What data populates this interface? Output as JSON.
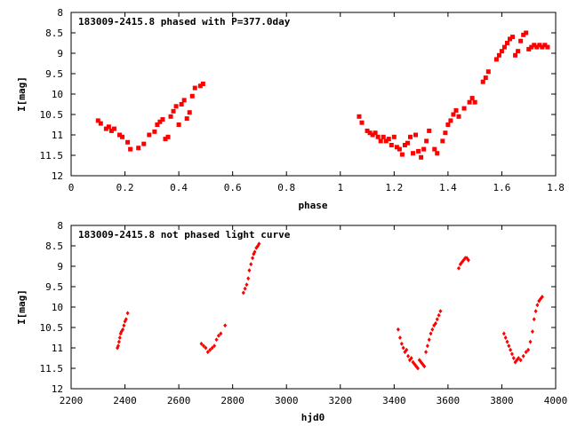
{
  "chart_data": [
    {
      "type": "scatter",
      "title": "183009-2415.8 phased with P=377.0day",
      "xlabel": "phase",
      "ylabel": "I[mag]",
      "xlim": [
        0,
        1.8
      ],
      "ylim": [
        8,
        12
      ],
      "y_inverted": true,
      "grid": false,
      "legend": "none",
      "marker": "filled square",
      "xticks": [
        "0",
        "0.2",
        "0.4",
        "0.6",
        "0.8",
        "1",
        "1.2",
        "1.4",
        "1.6",
        "1.8"
      ],
      "yticks": [
        "8",
        "8.5",
        "9",
        "9.5",
        "10",
        "10.5",
        "11",
        "11.5",
        "12"
      ],
      "series": [
        {
          "color": "#ff0000",
          "points": [
            [
              0.1,
              10.65
            ],
            [
              0.11,
              10.72
            ],
            [
              0.13,
              10.85
            ],
            [
              0.14,
              10.8
            ],
            [
              0.15,
              10.9
            ],
            [
              0.16,
              10.85
            ],
            [
              0.18,
              11.0
            ],
            [
              0.19,
              11.05
            ],
            [
              0.21,
              11.18
            ],
            [
              0.22,
              11.35
            ],
            [
              0.25,
              11.32
            ],
            [
              0.27,
              11.22
            ],
            [
              0.29,
              11.0
            ],
            [
              0.31,
              10.92
            ],
            [
              0.32,
              10.75
            ],
            [
              0.33,
              10.68
            ],
            [
              0.34,
              10.62
            ],
            [
              0.35,
              11.1
            ],
            [
              0.36,
              11.05
            ],
            [
              0.37,
              10.55
            ],
            [
              0.38,
              10.42
            ],
            [
              0.39,
              10.3
            ],
            [
              0.4,
              10.75
            ],
            [
              0.41,
              10.25
            ],
            [
              0.42,
              10.15
            ],
            [
              0.43,
              10.6
            ],
            [
              0.44,
              10.45
            ],
            [
              0.45,
              10.05
            ],
            [
              0.46,
              9.85
            ],
            [
              0.48,
              9.8
            ],
            [
              0.49,
              9.75
            ],
            [
              1.07,
              10.55
            ],
            [
              1.08,
              10.7
            ],
            [
              1.1,
              10.9
            ],
            [
              1.11,
              10.95
            ],
            [
              1.12,
              11.0
            ],
            [
              1.13,
              10.95
            ],
            [
              1.14,
              11.05
            ],
            [
              1.15,
              11.15
            ],
            [
              1.16,
              11.05
            ],
            [
              1.17,
              11.15
            ],
            [
              1.18,
              11.1
            ],
            [
              1.19,
              11.25
            ],
            [
              1.2,
              11.05
            ],
            [
              1.21,
              11.3
            ],
            [
              1.22,
              11.35
            ],
            [
              1.23,
              11.48
            ],
            [
              1.24,
              11.25
            ],
            [
              1.25,
              11.2
            ],
            [
              1.26,
              11.05
            ],
            [
              1.27,
              11.45
            ],
            [
              1.28,
              11.0
            ],
            [
              1.29,
              11.4
            ],
            [
              1.3,
              11.55
            ],
            [
              1.31,
              11.35
            ],
            [
              1.32,
              11.15
            ],
            [
              1.33,
              10.9
            ],
            [
              1.35,
              11.35
            ],
            [
              1.36,
              11.45
            ],
            [
              1.38,
              11.15
            ],
            [
              1.39,
              10.95
            ],
            [
              1.4,
              10.75
            ],
            [
              1.41,
              10.65
            ],
            [
              1.42,
              10.5
            ],
            [
              1.43,
              10.4
            ],
            [
              1.44,
              10.55
            ],
            [
              1.46,
              10.35
            ],
            [
              1.48,
              10.2
            ],
            [
              1.49,
              10.1
            ],
            [
              1.5,
              10.2
            ],
            [
              1.53,
              9.7
            ],
            [
              1.54,
              9.6
            ],
            [
              1.55,
              9.45
            ],
            [
              1.58,
              9.15
            ],
            [
              1.59,
              9.05
            ],
            [
              1.6,
              8.95
            ],
            [
              1.61,
              8.85
            ],
            [
              1.62,
              8.75
            ],
            [
              1.63,
              8.65
            ],
            [
              1.64,
              8.6
            ],
            [
              1.65,
              9.05
            ],
            [
              1.66,
              8.95
            ],
            [
              1.67,
              8.7
            ],
            [
              1.68,
              8.55
            ],
            [
              1.69,
              8.5
            ],
            [
              1.7,
              8.9
            ],
            [
              1.71,
              8.85
            ],
            [
              1.72,
              8.8
            ],
            [
              1.73,
              8.85
            ],
            [
              1.74,
              8.8
            ],
            [
              1.75,
              8.85
            ],
            [
              1.76,
              8.8
            ],
            [
              1.77,
              8.85
            ]
          ]
        }
      ]
    },
    {
      "type": "scatter",
      "title": "183009-2415.8 not phased light curve",
      "xlabel": "hjd0",
      "ylabel": "I[mag]",
      "xlim": [
        2200,
        4000
      ],
      "ylim": [
        8,
        12
      ],
      "y_inverted": true,
      "grid": false,
      "legend": "none",
      "marker": "small filled diamond",
      "xticks": [
        "2200",
        "2400",
        "2600",
        "2800",
        "3000",
        "3200",
        "3400",
        "3600",
        "3800",
        "4000"
      ],
      "yticks": [
        "8",
        "8.5",
        "9",
        "9.5",
        "10",
        "10.5",
        "11",
        "11.5",
        "12"
      ],
      "series": [
        {
          "color": "#ff0000",
          "points": [
            [
              2372,
              11.0
            ],
            [
              2375,
              10.95
            ],
            [
              2378,
              10.85
            ],
            [
              2381,
              10.75
            ],
            [
              2384,
              10.65
            ],
            [
              2387,
              10.6
            ],
            [
              2392,
              10.55
            ],
            [
              2396,
              10.45
            ],
            [
              2400,
              10.35
            ],
            [
              2404,
              10.3
            ],
            [
              2410,
              10.15
            ],
            [
              2684,
              10.9
            ],
            [
              2692,
              10.95
            ],
            [
              2700,
              11.0
            ],
            [
              2708,
              11.1
            ],
            [
              2716,
              11.05
            ],
            [
              2724,
              11.0
            ],
            [
              2732,
              10.95
            ],
            [
              2740,
              10.8
            ],
            [
              2748,
              10.7
            ],
            [
              2756,
              10.65
            ],
            [
              2772,
              10.45
            ],
            [
              2840,
              9.65
            ],
            [
              2846,
              9.55
            ],
            [
              2852,
              9.45
            ],
            [
              2858,
              9.3
            ],
            [
              2862,
              9.1
            ],
            [
              2868,
              8.95
            ],
            [
              2874,
              8.8
            ],
            [
              2878,
              8.7
            ],
            [
              2882,
              8.65
            ],
            [
              2888,
              8.55
            ],
            [
              2894,
              8.5
            ],
            [
              2898,
              8.45
            ],
            [
              3415,
              10.55
            ],
            [
              3422,
              10.75
            ],
            [
              3428,
              10.9
            ],
            [
              3434,
              11.0
            ],
            [
              3440,
              11.1
            ],
            [
              3446,
              11.05
            ],
            [
              3452,
              11.2
            ],
            [
              3458,
              11.3
            ],
            [
              3464,
              11.25
            ],
            [
              3470,
              11.35
            ],
            [
              3476,
              11.4
            ],
            [
              3482,
              11.45
            ],
            [
              3488,
              11.5
            ],
            [
              3494,
              11.3
            ],
            [
              3500,
              11.35
            ],
            [
              3506,
              11.4
            ],
            [
              3512,
              11.45
            ],
            [
              3518,
              11.1
            ],
            [
              3524,
              10.95
            ],
            [
              3530,
              10.8
            ],
            [
              3536,
              10.65
            ],
            [
              3542,
              10.55
            ],
            [
              3548,
              10.45
            ],
            [
              3554,
              10.4
            ],
            [
              3560,
              10.3
            ],
            [
              3566,
              10.2
            ],
            [
              3572,
              10.1
            ],
            [
              3640,
              9.05
            ],
            [
              3646,
              8.95
            ],
            [
              3652,
              8.9
            ],
            [
              3658,
              8.85
            ],
            [
              3664,
              8.8
            ],
            [
              3670,
              8.8
            ],
            [
              3676,
              8.85
            ],
            [
              3808,
              10.65
            ],
            [
              3814,
              10.75
            ],
            [
              3820,
              10.85
            ],
            [
              3826,
              10.95
            ],
            [
              3832,
              11.05
            ],
            [
              3838,
              11.15
            ],
            [
              3844,
              11.25
            ],
            [
              3850,
              11.35
            ],
            [
              3856,
              11.3
            ],
            [
              3862,
              11.25
            ],
            [
              3870,
              11.3
            ],
            [
              3880,
              11.2
            ],
            [
              3890,
              11.1
            ],
            [
              3898,
              11.05
            ],
            [
              3906,
              10.85
            ],
            [
              3914,
              10.6
            ],
            [
              3920,
              10.3
            ],
            [
              3926,
              10.1
            ],
            [
              3932,
              9.95
            ],
            [
              3938,
              9.85
            ],
            [
              3944,
              9.8
            ],
            [
              3950,
              9.75
            ]
          ]
        }
      ]
    }
  ]
}
